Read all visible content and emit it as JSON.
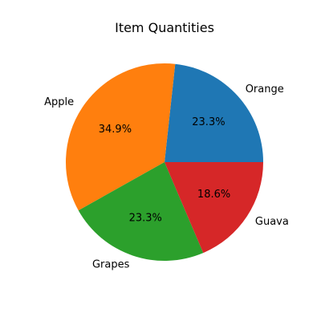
{
  "chart_data": {
    "type": "pie",
    "title": "Item Quantities",
    "categories": [
      "Orange",
      "Apple",
      "Grapes",
      "Guava"
    ],
    "values": [
      23.3,
      34.9,
      23.3,
      18.6
    ],
    "percent_labels": [
      "23.3%",
      "34.9%",
      "23.3%",
      "18.6%"
    ],
    "colors": [
      "#1f77b4",
      "#ff7f0e",
      "#2ca02c",
      "#d62728"
    ],
    "start_angle_deg": 0,
    "direction": "counterclockwise",
    "legend": "none"
  }
}
